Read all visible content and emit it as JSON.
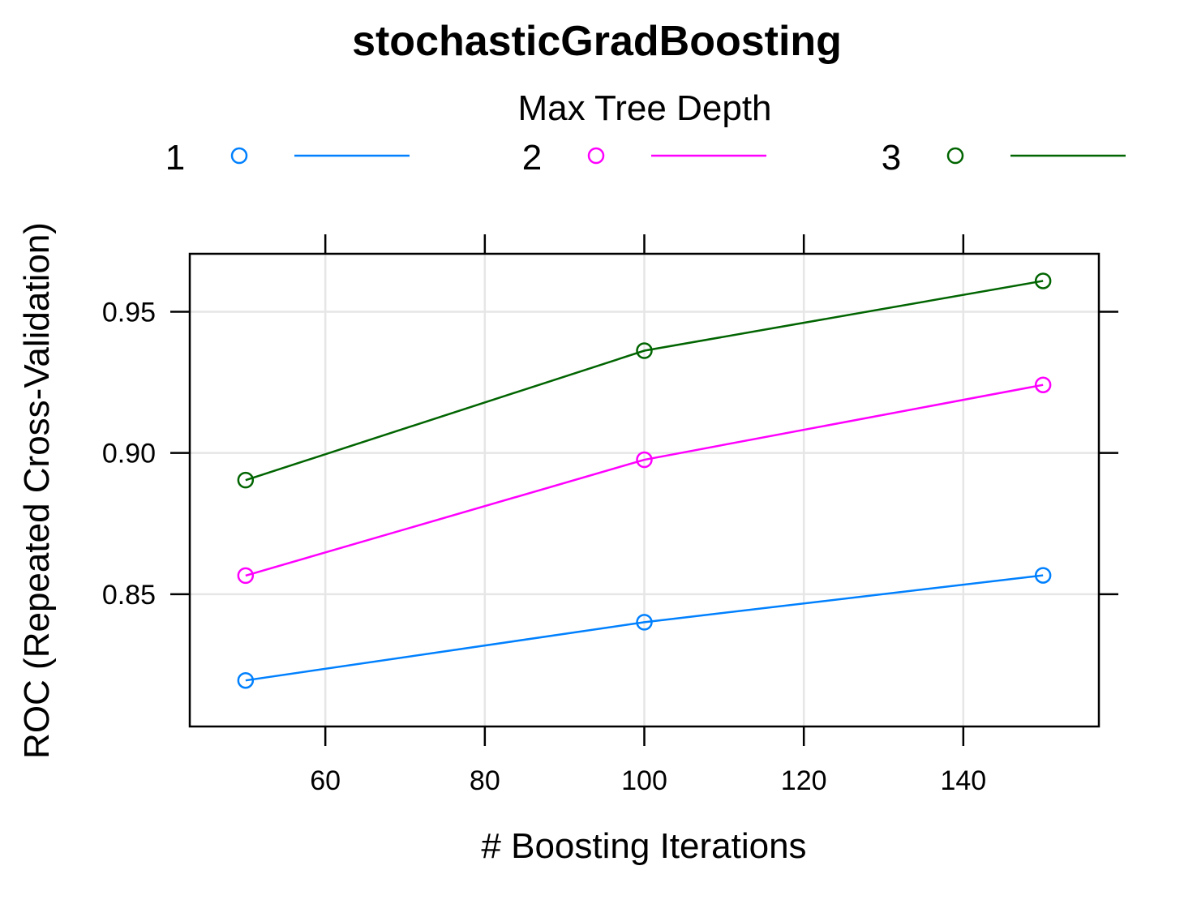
{
  "chart_data": {
    "type": "line",
    "title": "stochasticGradBoosting",
    "xlabel": "# Boosting Iterations",
    "ylabel": "ROC (Repeated Cross-Validation)",
    "legend_title": "Max Tree Depth",
    "legend_position": "top",
    "grid": true,
    "xlim": [
      43,
      157
    ],
    "ylim": [
      0.8032,
      0.9705
    ],
    "x_ticks": [
      60,
      80,
      100,
      120,
      140
    ],
    "x_tick_labels": [
      "60",
      "80",
      "100",
      "120",
      "140"
    ],
    "y_ticks": [
      0.85,
      0.9,
      0.95
    ],
    "y_tick_labels": [
      "0.85",
      "0.90",
      "0.95"
    ],
    "x": [
      50,
      100,
      150
    ],
    "series": [
      {
        "name": "1",
        "color": "#0080ff",
        "values": [
          0.8195,
          0.8401,
          0.8567
        ]
      },
      {
        "name": "2",
        "color": "#ff00ff",
        "values": [
          0.8566,
          0.8976,
          0.9241
        ]
      },
      {
        "name": "3",
        "color": "#006400",
        "values": [
          0.8904,
          0.9362,
          0.9609
        ]
      }
    ]
  }
}
